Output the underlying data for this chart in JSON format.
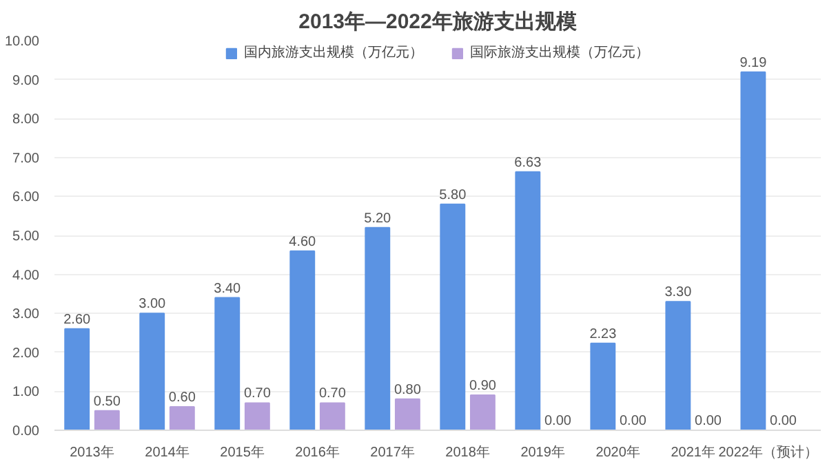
{
  "chart_data": {
    "type": "bar",
    "title": "2013年—2022年旅游支出规模",
    "categories": [
      "2013年",
      "2014年",
      "2015年",
      "2016年",
      "2017年",
      "2018年",
      "2019年",
      "2020年",
      "2021年",
      "2022年（预计）"
    ],
    "series": [
      {
        "name": "国内旅游支出规模（万亿元）",
        "color": "#5b93e3",
        "values": [
          2.6,
          3.0,
          3.4,
          4.6,
          5.2,
          5.8,
          6.63,
          2.23,
          3.3,
          9.19
        ],
        "value_labels": [
          "2.60",
          "3.00",
          "3.40",
          "4.60",
          "5.20",
          "5.80",
          "6.63",
          "2.23",
          "3.30",
          "9.19"
        ]
      },
      {
        "name": "国际旅游支出规模（万亿元）",
        "color": "#b59fdb",
        "values": [
          0.5,
          0.6,
          0.7,
          0.7,
          0.8,
          0.9,
          0,
          0,
          0,
          0
        ],
        "value_labels": [
          "0.50",
          "0.60",
          "0.70",
          "0.70",
          "0.80",
          "0.90",
          "0.00",
          "0.00",
          "0.00",
          "0.00"
        ]
      }
    ],
    "ylim": [
      0,
      10
    ],
    "yticks": [
      {
        "value": 0,
        "label": "0.00"
      },
      {
        "value": 1,
        "label": "1.00"
      },
      {
        "value": 2,
        "label": "2.00"
      },
      {
        "value": 3,
        "label": "3.00"
      },
      {
        "value": 4,
        "label": "4.00"
      },
      {
        "value": 5,
        "label": "5.00"
      },
      {
        "value": 6,
        "label": "6.00"
      },
      {
        "value": 7,
        "label": "7.00"
      },
      {
        "value": 8,
        "label": "8.00"
      },
      {
        "value": 9,
        "label": "9.00"
      },
      {
        "value": 10,
        "label": "10.00"
      }
    ],
    "grid": "y",
    "legend": "top"
  }
}
